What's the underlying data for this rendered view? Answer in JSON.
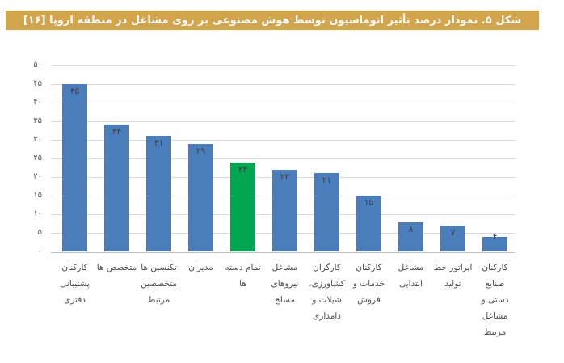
{
  "figure": {
    "title": "شکل ۵. نمودار درصد تأثیر اتوماسیون توسط هوش مصنوعی بر روی مشاغل در منطقه اروپا [۱۶]"
  },
  "colors": {
    "title_bg": "#d2a44c",
    "title_text": "#ffffff",
    "bar_blue": "#4a7ebb",
    "bar_green": "#00a651",
    "gridline": "#d9d9d9",
    "axis_line": "#c0c0c0",
    "value_label": "#3f3f3f",
    "tick_label": "#595959",
    "category_label": "#4d4d4d",
    "background": "#ffffff"
  },
  "chart_data": {
    "type": "bar",
    "title": "شکل ۵. نمودار درصد تأثیر اتوماسیون توسط هوش مصنوعی بر روی مشاغل در منطقه اروپا [۱۶]",
    "direction": "rtl",
    "xlabel": "",
    "ylabel": "",
    "ylim": [
      0,
      50
    ],
    "ytick_step": 5,
    "ytick_labels_ascending": [
      "۰",
      "۵",
      "۱۰",
      "۱۵",
      "۲۰",
      "۲۵",
      "۳۰",
      "۳۵",
      "۴۰",
      "۴۵",
      "۵۰"
    ],
    "grid": true,
    "legend": "none",
    "highlight_index": 4,
    "categories": [
      "کارکنان پشتیبانی دفتری",
      "متخصص ها",
      "تکنسین ها متخصصین مرتبط",
      "مدیران",
      "تمام دسته ها",
      "مشاغل نیروهای مسلح",
      "کارگران کشاورزی، شیلات و دامداری",
      "کارکنان خدمات و فروش",
      "مشاغل ابتدایی",
      "اپراتور خط تولید",
      "کارکنان صنایع دستی و مشاغل مرتبط"
    ],
    "category_lines": [
      [
        "کارکنان",
        "پشتیبانی",
        "دفتری"
      ],
      [
        "متخصص ها"
      ],
      [
        "تکنسین ها",
        "متخصصین",
        "مرتبط"
      ],
      [
        "مدیران"
      ],
      [
        "تمام دسته",
        "ها"
      ],
      [
        "مشاغل",
        "نیروهای",
        "مسلح"
      ],
      [
        "کارگران",
        "کشاورزی،",
        "شیلات و",
        "دامداری"
      ],
      [
        "کارکنان",
        "خدمات و",
        "فروش"
      ],
      [
        "مشاغل",
        "ابتدایی"
      ],
      [
        "اپراتور خط",
        "تولید"
      ],
      [
        "کارکنان",
        "صنایع",
        "دستی و",
        "مشاغل",
        "مرتبط"
      ]
    ],
    "values": [
      45,
      34,
      31,
      29,
      24,
      22,
      21,
      15,
      8,
      7,
      4
    ],
    "value_labels": [
      "۴۵",
      "۳۴",
      "۳۱",
      "۲۹",
      "۲۴",
      "۲۲",
      "۲۱",
      "۱۵",
      "۸",
      "۷",
      "۴"
    ]
  }
}
